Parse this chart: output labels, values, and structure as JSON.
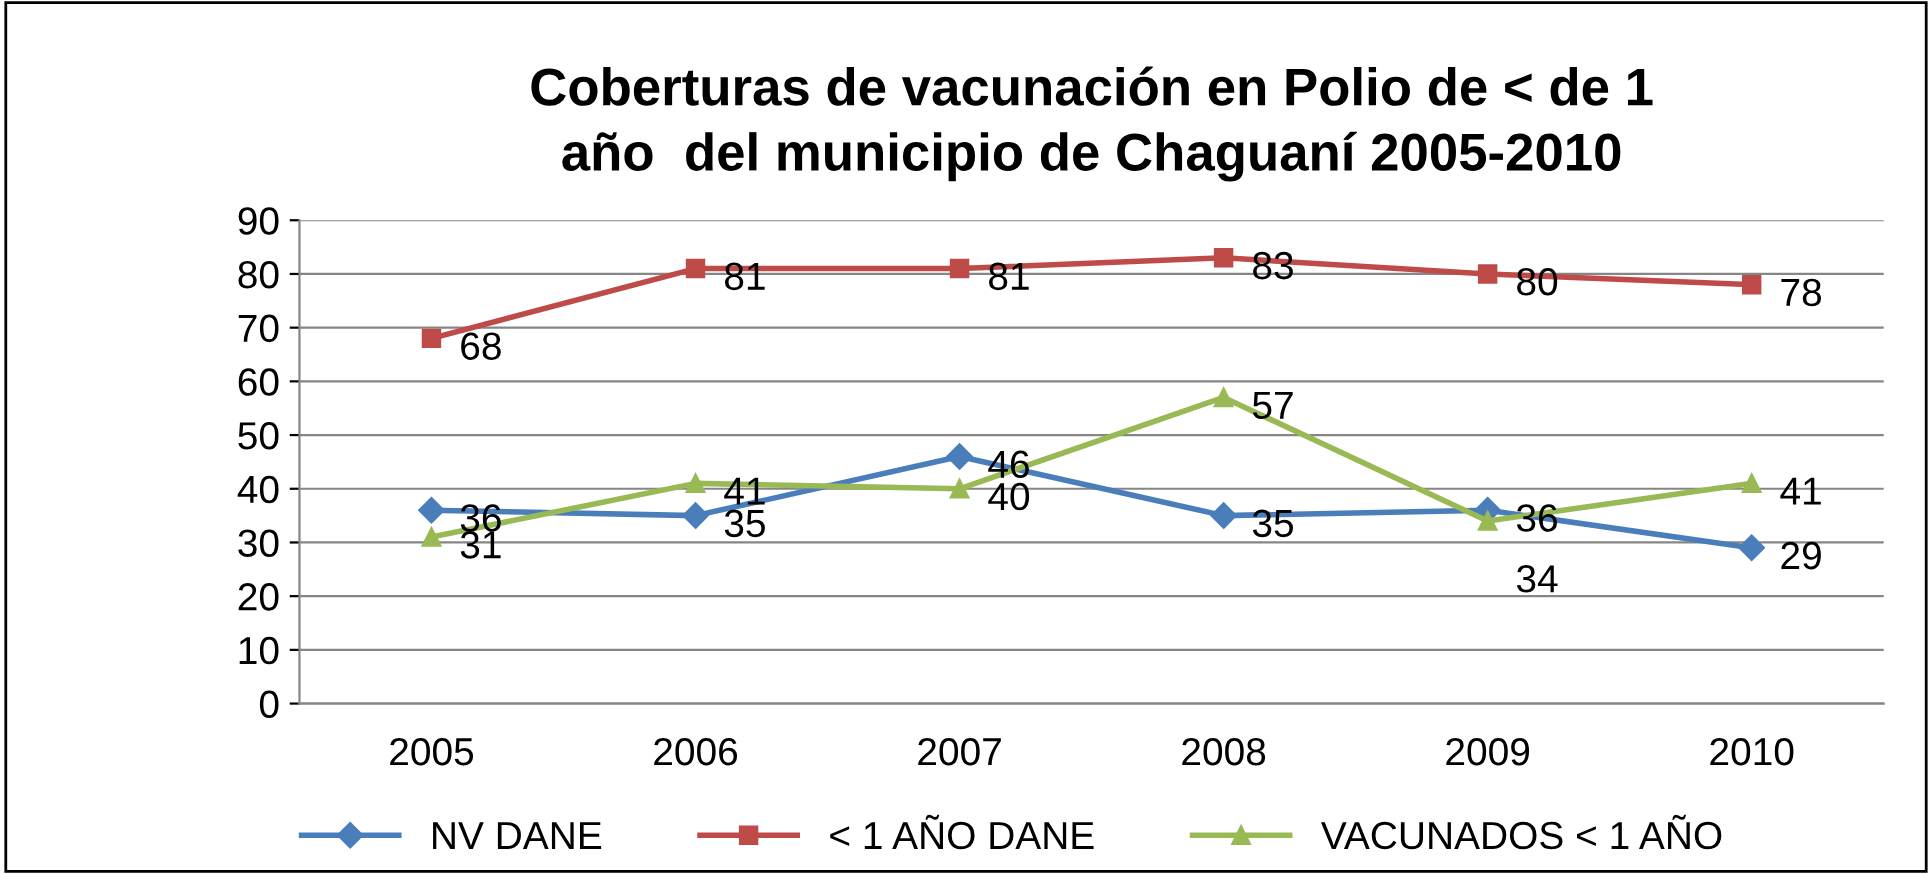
{
  "chart_data": {
    "type": "line",
    "title": "Coberturas de vacunación en Polio de < de 1\naño  del municipio de Chaguaní 2005-2010",
    "categories": [
      "2005",
      "2006",
      "2007",
      "2008",
      "2009",
      "2010"
    ],
    "series": [
      {
        "name": "NV DANE",
        "color": "#4a7ebb",
        "marker": "diamond",
        "values": [
          36,
          35,
          46,
          35,
          36,
          29
        ]
      },
      {
        "name": "< 1 AÑO DANE",
        "color": "#be4b48",
        "marker": "square",
        "values": [
          68,
          81,
          81,
          83,
          80,
          78
        ]
      },
      {
        "name": "VACUNADOS < 1 AÑO",
        "color": "#98b954",
        "marker": "triangle",
        "values": [
          31,
          41,
          40,
          57,
          34,
          41
        ]
      }
    ],
    "ylim": [
      0,
      90
    ],
    "yticks": [
      0,
      10,
      20,
      30,
      40,
      50,
      60,
      70,
      80,
      90
    ],
    "grid": "y",
    "legend": "bottom",
    "data_labels": true,
    "line_style": "solid"
  }
}
